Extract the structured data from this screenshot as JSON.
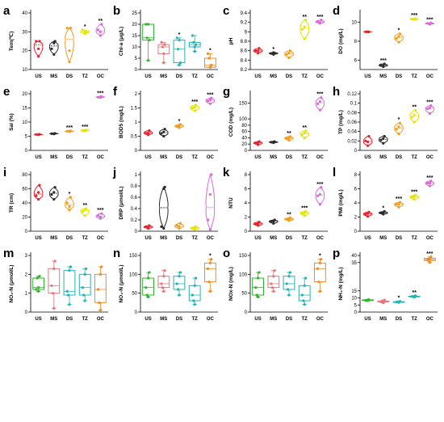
{
  "figure": {
    "categories": [
      "US",
      "MS",
      "DS",
      "TZ",
      "OC"
    ],
    "colors": [
      "#e8222c",
      "#2b2b2b",
      "#f29c1f",
      "#e3e600",
      "#e066e0"
    ],
    "colors_alt": [
      "#2db52d",
      "#e8747c",
      "#1fb5b5",
      "#1fb5b5",
      "#f28a1f"
    ]
  },
  "chart_data": [
    {
      "panel": "a",
      "type": "violin",
      "ylabel": "Tem(℃)",
      "ylim": [
        10,
        40
      ],
      "yticks": [
        10,
        20,
        30,
        40
      ],
      "series": [
        {
          "name": "US",
          "values": [
            17,
            25,
            25,
            21
          ]
        },
        {
          "name": "MS",
          "values": [
            18,
            25,
            21,
            24
          ]
        },
        {
          "name": "DS",
          "values": [
            14,
            32,
            32,
            20
          ]
        },
        {
          "name": "TZ",
          "values": [
            29,
            30,
            31,
            30
          ]
        },
        {
          "name": "OC",
          "values": [
            28,
            34,
            31,
            30
          ]
        }
      ],
      "significance": [
        "",
        "",
        "",
        "*",
        "**"
      ]
    },
    {
      "panel": "b",
      "type": "box",
      "ylabel": "Chl-a (μg/L)",
      "ylim": [
        0,
        25
      ],
      "yticks": [
        0,
        5,
        10,
        15,
        20,
        25
      ],
      "series": [
        {
          "name": "US",
          "values": [
            4,
            13,
            20,
            20,
            14
          ]
        },
        {
          "name": "MS",
          "values": [
            3,
            11,
            12,
            7,
            10
          ]
        },
        {
          "name": "DS",
          "values": [
            2,
            3,
            14,
            13,
            9
          ]
        },
        {
          "name": "TZ",
          "values": [
            8,
            11,
            15,
            10,
            12
          ]
        },
        {
          "name": "OC",
          "values": [
            1,
            2,
            7,
            1,
            5
          ]
        }
      ],
      "significance": [
        "",
        "",
        "*",
        "",
        "*"
      ]
    },
    {
      "panel": "c",
      "type": "violin",
      "ylabel": "pH",
      "ylim": [
        8.2,
        9.4
      ],
      "yticks": [
        8.2,
        8.4,
        8.6,
        8.8,
        9.0,
        9.2,
        9.4
      ],
      "series": [
        {
          "name": "US",
          "values": [
            8.55,
            8.65,
            8.6,
            8.6
          ]
        },
        {
          "name": "MS",
          "values": [
            8.52,
            8.55,
            8.54,
            8.56
          ]
        },
        {
          "name": "DS",
          "values": [
            8.45,
            8.6,
            8.52,
            8.55
          ]
        },
        {
          "name": "TZ",
          "values": [
            8.85,
            9.25,
            9.05,
            9.1
          ]
        },
        {
          "name": "OC",
          "values": [
            9.18,
            9.25,
            9.22,
            9.2
          ]
        }
      ],
      "significance": [
        "",
        "*",
        "",
        "**",
        "***"
      ]
    },
    {
      "panel": "d",
      "type": "violin",
      "ylabel": "DO (mg/L)",
      "ylim": [
        5,
        11
      ],
      "yticks": [
        6,
        8,
        10
      ],
      "series": [
        {
          "name": "US",
          "values": [
            9.0,
            9.0,
            9.0,
            9.0
          ]
        },
        {
          "name": "MS",
          "values": [
            5.3,
            5.6,
            5.5,
            5.4
          ]
        },
        {
          "name": "DS",
          "values": [
            7.9,
            8.8,
            8.3,
            8.5
          ]
        },
        {
          "name": "TZ",
          "values": [
            10.3,
            10.4,
            10.35,
            10.3
          ]
        },
        {
          "name": "OC",
          "values": [
            9.8,
            9.95,
            9.9,
            9.85
          ]
        }
      ],
      "significance": [
        "",
        "***",
        "*",
        "***",
        "***"
      ]
    },
    {
      "panel": "e",
      "type": "violin",
      "ylabel": "Sal (%)",
      "ylim": [
        0,
        20
      ],
      "yticks": [
        0,
        5,
        10,
        15,
        20
      ],
      "series": [
        {
          "name": "US",
          "values": [
            5.5,
            5.7,
            5.6,
            5.6
          ]
        },
        {
          "name": "MS",
          "values": [
            5.8,
            6.0,
            5.9,
            5.9
          ]
        },
        {
          "name": "DS",
          "values": [
            6.6,
            6.9,
            6.8,
            6.7
          ]
        },
        {
          "name": "TZ",
          "values": [
            6.9,
            7.2,
            7.0,
            7.1
          ]
        },
        {
          "name": "OC",
          "values": [
            18.7,
            19.0,
            18.8,
            18.9
          ]
        }
      ],
      "significance": [
        "",
        "",
        "***",
        "***",
        "***"
      ]
    },
    {
      "panel": "f",
      "type": "violin",
      "ylabel": "BOD5 (mg/L)",
      "ylim": [
        0,
        2.0
      ],
      "yticks": [
        0.0,
        0.5,
        1.0,
        1.5,
        2.0
      ],
      "series": [
        {
          "name": "US",
          "values": [
            0.55,
            0.7,
            0.6,
            0.62
          ]
        },
        {
          "name": "MS",
          "values": [
            0.5,
            0.75,
            0.6,
            0.65
          ]
        },
        {
          "name": "DS",
          "values": [
            0.8,
            0.92,
            0.85,
            0.86
          ]
        },
        {
          "name": "TZ",
          "values": [
            1.4,
            1.6,
            1.5,
            1.52
          ]
        },
        {
          "name": "OC",
          "values": [
            1.65,
            1.85,
            1.75,
            1.78
          ]
        }
      ],
      "significance": [
        "",
        "",
        "*",
        "***",
        "***"
      ]
    },
    {
      "panel": "g",
      "type": "violin",
      "ylabel": "COD (mg/L)",
      "ylim": [
        0,
        180
      ],
      "yticks": [
        0,
        20,
        40,
        60,
        80,
        100,
        150,
        200
      ],
      "series": [
        {
          "name": "US",
          "values": [
            18,
            28,
            23,
            25
          ]
        },
        {
          "name": "MS",
          "values": [
            24,
            28,
            26,
            27
          ]
        },
        {
          "name": "DS",
          "values": [
            32,
            44,
            38,
            40
          ]
        },
        {
          "name": "TZ",
          "values": [
            40,
            62,
            50,
            55
          ]
        },
        {
          "name": "OC",
          "values": [
            128,
            168,
            148,
            155
          ]
        }
      ],
      "significance": [
        "",
        "",
        "**",
        "**",
        "***"
      ]
    },
    {
      "panel": "h",
      "type": "violin",
      "ylabel": "TP (mg/L)",
      "ylim": [
        0,
        0.12
      ],
      "yticks": [
        0.0,
        0.02,
        0.04,
        0.06,
        0.08,
        0.1,
        0.12
      ],
      "series": [
        {
          "name": "US",
          "values": [
            0.01,
            0.03,
            0.02,
            0.018
          ]
        },
        {
          "name": "MS",
          "values": [
            0.015,
            0.03,
            0.022,
            0.025
          ]
        },
        {
          "name": "DS",
          "values": [
            0.035,
            0.058,
            0.045,
            0.05
          ]
        },
        {
          "name": "TZ",
          "values": [
            0.06,
            0.085,
            0.07,
            0.075
          ]
        },
        {
          "name": "OC",
          "values": [
            0.078,
            0.095,
            0.088,
            0.09
          ]
        }
      ],
      "significance": [
        "",
        "",
        "*",
        "**",
        "***"
      ]
    },
    {
      "panel": "i",
      "type": "violin",
      "ylabel": "TR (cm)",
      "ylim": [
        0,
        80
      ],
      "yticks": [
        0,
        20,
        40,
        60,
        80
      ],
      "series": [
        {
          "name": "US",
          "values": [
            45,
            65,
            50,
            55
          ]
        },
        {
          "name": "MS",
          "values": [
            45,
            62,
            52,
            55
          ]
        },
        {
          "name": "DS",
          "values": [
            30,
            48,
            40,
            35
          ]
        },
        {
          "name": "TZ",
          "values": [
            22,
            32,
            28,
            30
          ]
        },
        {
          "name": "OC",
          "values": [
            18,
            25,
            22,
            20
          ]
        }
      ],
      "significance": [
        "",
        "",
        "*",
        "**",
        "***"
      ]
    },
    {
      "panel": "j",
      "type": "violin",
      "ylabel": "DRP (μmol/L)",
      "ylim": [
        0,
        1.0
      ],
      "yticks": [
        0.0,
        0.2,
        0.4,
        0.6,
        0.8,
        1.0
      ],
      "series": [
        {
          "name": "US",
          "values": [
            0.05,
            0.1,
            0.08,
            0.07
          ]
        },
        {
          "name": "MS",
          "values": [
            0.05,
            0.78,
            0.08,
            0.75
          ]
        },
        {
          "name": "DS",
          "values": [
            0.05,
            0.14,
            0.1,
            0.08
          ]
        },
        {
          "name": "TZ",
          "values": [
            0.03,
            0.08,
            0.05,
            0.06
          ]
        },
        {
          "name": "OC",
          "values": [
            0.03,
            1.0,
            0.2,
            0.65
          ]
        }
      ],
      "significance": [
        "",
        "",
        "",
        "",
        ""
      ]
    },
    {
      "panel": "k",
      "type": "violin",
      "ylabel": "NTU",
      "ylim": [
        0,
        8
      ],
      "yticks": [
        0,
        2,
        4,
        6,
        8
      ],
      "series": [
        {
          "name": "US",
          "values": [
            0.8,
            1.3,
            1.0,
            1.1
          ]
        },
        {
          "name": "MS",
          "values": [
            1.1,
            1.6,
            1.4,
            1.4
          ]
        },
        {
          "name": "DS",
          "values": [
            1.5,
            1.9,
            1.7,
            1.7
          ]
        },
        {
          "name": "TZ",
          "values": [
            2.2,
            2.8,
            2.5,
            2.6
          ]
        },
        {
          "name": "OC",
          "values": [
            3.8,
            6.2,
            5.0,
            5.2
          ]
        }
      ],
      "significance": [
        "",
        "",
        "**",
        "***",
        "***"
      ]
    },
    {
      "panel": "l",
      "type": "violin",
      "ylabel": "PMI (mg/L)",
      "ylim": [
        0,
        8
      ],
      "yticks": [
        0,
        2,
        4,
        6,
        8
      ],
      "series": [
        {
          "name": "US",
          "values": [
            2.1,
            2.7,
            2.4,
            2.5
          ]
        },
        {
          "name": "MS",
          "values": [
            2.4,
            2.8,
            2.6,
            2.6
          ]
        },
        {
          "name": "DS",
          "values": [
            3.4,
            4.1,
            3.8,
            3.8
          ]
        },
        {
          "name": "TZ",
          "values": [
            4.5,
            5.1,
            4.8,
            4.9
          ]
        },
        {
          "name": "OC",
          "values": [
            6.4,
            7.1,
            6.8,
            6.8
          ]
        }
      ],
      "significance": [
        "",
        "*",
        "***",
        "***",
        "***"
      ]
    },
    {
      "panel": "m",
      "type": "box",
      "ylabel": "NO₂-N (μmol/L)",
      "ylim": [
        0,
        3
      ],
      "yticks": [
        0,
        1,
        2,
        3
      ],
      "series": [
        {
          "name": "US",
          "values": [
            1.1,
            1.9,
            1.2,
            1.3,
            1.8
          ]
        },
        {
          "name": "MS",
          "values": [
            0.2,
            2.7,
            1.4,
            2.3,
            1.0
          ]
        },
        {
          "name": "DS",
          "values": [
            0.4,
            2.4,
            1.1,
            2.2,
            0.9
          ]
        },
        {
          "name": "TZ",
          "values": [
            0.6,
            2.3,
            1.3,
            2.0,
            0.9
          ]
        },
        {
          "name": "OC",
          "values": [
            0.1,
            2.4,
            1.2,
            2.0,
            0.5
          ]
        }
      ],
      "significance": [
        "",
        "",
        "",
        "",
        ""
      ]
    },
    {
      "panel": "n",
      "type": "box",
      "ylabel": "NO₃-N (μmol/L)",
      "ylim": [
        0,
        150
      ],
      "yticks": [
        0,
        50,
        100,
        150
      ],
      "series": [
        {
          "name": "US",
          "values": [
            40,
            105,
            65,
            90,
            45
          ]
        },
        {
          "name": "MS",
          "values": [
            55,
            110,
            75,
            95,
            65
          ]
        },
        {
          "name": "DS",
          "values": [
            45,
            105,
            75,
            95,
            60
          ]
        },
        {
          "name": "TZ",
          "values": [
            20,
            90,
            45,
            70,
            30
          ]
        },
        {
          "name": "OC",
          "values": [
            55,
            140,
            115,
            130,
            80
          ]
        }
      ],
      "significance": [
        "",
        "",
        "",
        "",
        "*"
      ]
    },
    {
      "panel": "o",
      "type": "box",
      "ylabel": "NOx-N (mg/L)",
      "ylim": [
        0,
        150
      ],
      "yticks": [
        0,
        50,
        100,
        150
      ],
      "series": [
        {
          "name": "US",
          "values": [
            40,
            105,
            65,
            90,
            45
          ]
        },
        {
          "name": "MS",
          "values": [
            55,
            110,
            75,
            95,
            65
          ]
        },
        {
          "name": "DS",
          "values": [
            45,
            105,
            75,
            95,
            60
          ]
        },
        {
          "name": "TZ",
          "values": [
            20,
            90,
            45,
            70,
            30
          ]
        },
        {
          "name": "OC",
          "values": [
            55,
            140,
            115,
            130,
            80
          ]
        }
      ],
      "significance": [
        "",
        "",
        "",
        "",
        "*"
      ]
    },
    {
      "panel": "p",
      "type": "box",
      "ylabel": "NH₄-N (mg/L)",
      "ylim": [
        0,
        40
      ],
      "yticks": [
        0,
        5,
        10,
        15,
        35,
        40
      ],
      "series": [
        {
          "name": "US",
          "values": [
            8,
            8.8,
            8.3,
            8.6,
            8.4
          ]
        },
        {
          "name": "MS",
          "values": [
            6.5,
            8.5,
            7.2,
            7.8,
            7.5
          ]
        },
        {
          "name": "DS",
          "values": [
            6.8,
            7.6,
            7.0,
            7.3,
            7.1
          ]
        },
        {
          "name": "TZ",
          "values": [
            10.5,
            11.5,
            11.0,
            11.2,
            10.9
          ]
        },
        {
          "name": "OC",
          "values": [
            35,
            39,
            37,
            38,
            36.5
          ]
        }
      ],
      "significance": [
        "",
        "",
        "*",
        "**",
        "***"
      ]
    }
  ]
}
